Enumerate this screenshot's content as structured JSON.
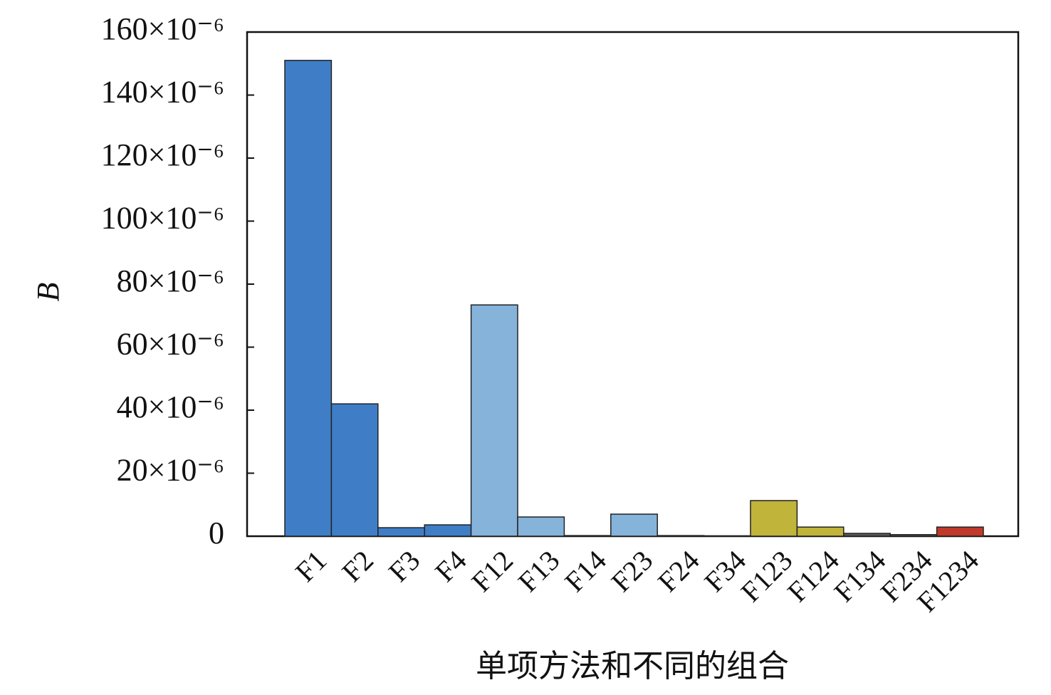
{
  "chart_data": {
    "type": "bar",
    "xlabel": "单项方法和不同的组合",
    "ylabel": "B",
    "categories": [
      "F1",
      "F2",
      "F3",
      "F4",
      "F12",
      "F13",
      "F14",
      "F23",
      "F24",
      "F34",
      "F123",
      "F124",
      "F134",
      "F234",
      "F1234"
    ],
    "values": [
      0.000151,
      4.2e-05,
      2.7e-06,
      3.6e-06,
      7.34e-05,
      6.1e-06,
      2e-07,
      7e-06,
      2e-07,
      1e-07,
      1.13e-05,
      2.9e-06,
      9e-07,
      5e-07,
      2.9e-06
    ],
    "colors": [
      "#3f7ec6",
      "#3f7ec6",
      "#3f7ec6",
      "#3f7ec6",
      "#85b3da",
      "#85b3da",
      "#85b3da",
      "#85b3da",
      "#85b3da",
      "#85b3da",
      "#c0b43a",
      "#c0b43a",
      "#5a5a5a",
      "#5a5a5a",
      "#c0392b"
    ],
    "ylim": [
      0,
      0.00016
    ],
    "yticks": [
      0,
      {
        "value": 2e-05,
        "label": "20×10⁻⁶"
      },
      {
        "value": 4e-05,
        "label": "40×10⁻⁶"
      },
      {
        "value": 6e-05,
        "label": "60×10⁻⁶"
      },
      {
        "value": 8e-05,
        "label": "80×10⁻⁶"
      },
      {
        "value": 0.0001,
        "label": "100×10⁻⁶"
      },
      {
        "value": 0.00012,
        "label": "120×10⁻⁶"
      },
      {
        "value": 0.00014,
        "label": "140×10⁻⁶"
      },
      {
        "value": 0.00016,
        "label": "160×10⁻⁶"
      }
    ]
  }
}
